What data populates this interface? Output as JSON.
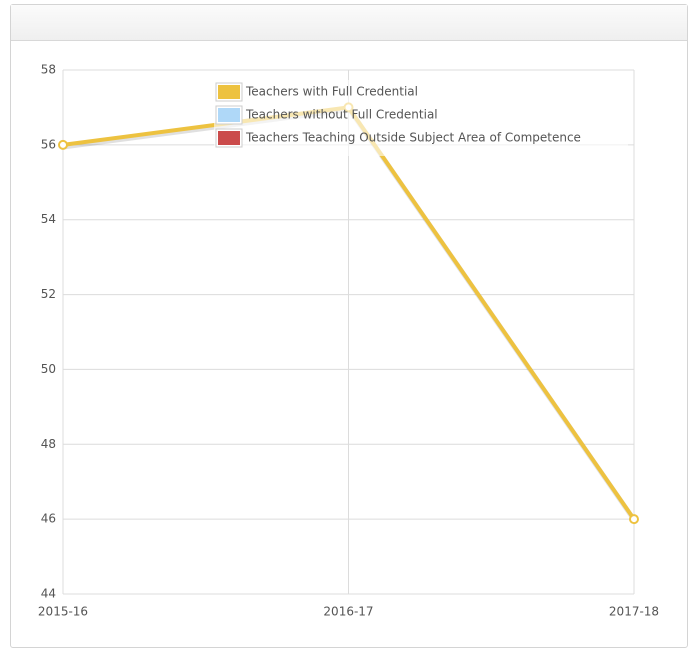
{
  "chart_data": {
    "type": "line",
    "categories": [
      "2015-16",
      "2016-17",
      "2017-18"
    ],
    "series": [
      {
        "name": "Teachers with Full Credential",
        "color": "#edc240",
        "values": [
          56,
          57,
          46
        ]
      },
      {
        "name": "Teachers without Full Credential",
        "color": "#afd8f8",
        "values": [
          null,
          null,
          null
        ]
      },
      {
        "name": "Teachers Teaching Outside Subject Area of Competence",
        "color": "#cb4b4b",
        "values": [
          null,
          null,
          null
        ]
      }
    ],
    "ylim": [
      44,
      58
    ],
    "yticks": [
      44,
      46,
      48,
      50,
      52,
      54,
      56,
      58
    ],
    "grid": true,
    "legend": "top"
  }
}
